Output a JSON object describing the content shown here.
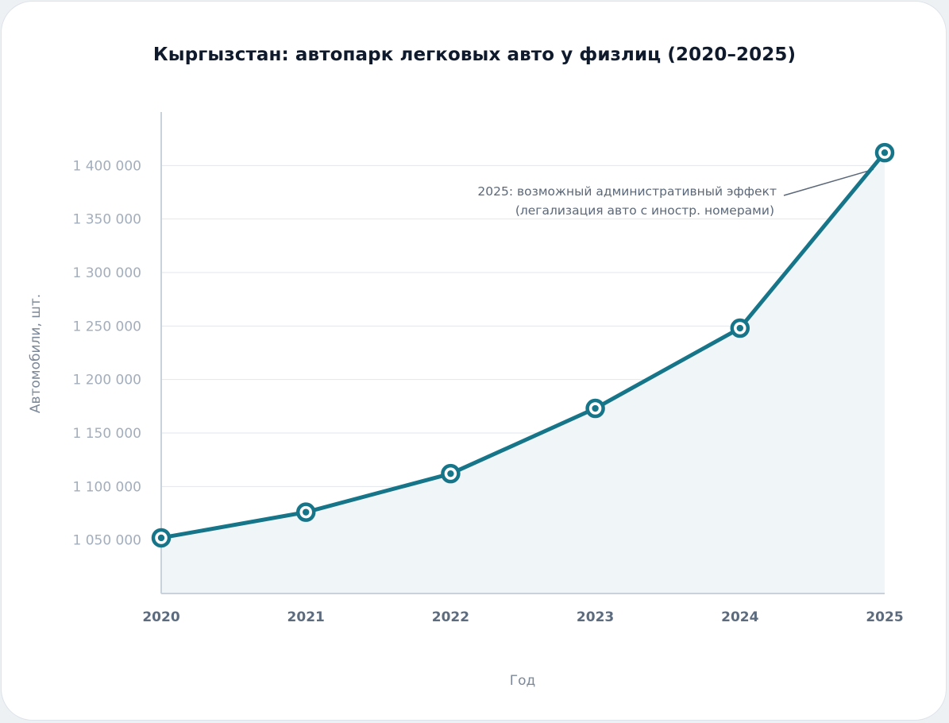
{
  "chart_data": {
    "type": "area",
    "title": "Кыргызстан: автопарк легковых авто у физлиц (2020–2025)",
    "xlabel": "Год",
    "ylabel": "Автомобили, шт.",
    "x": [
      "2020",
      "2021",
      "2022",
      "2023",
      "2024",
      "2025"
    ],
    "series": [
      {
        "values": [
          1052000,
          1076000,
          1112000,
          1173000,
          1248000,
          1412000
        ]
      }
    ],
    "ylim": [
      1000000,
      1450000
    ],
    "yticks": [
      1050000,
      1100000,
      1150000,
      1200000,
      1250000,
      1300000,
      1350000,
      1400000
    ],
    "ytick_labels": [
      "1 050 000",
      "1 100 000",
      "1 150 000",
      "1 200 000",
      "1 250 000",
      "1 300 000",
      "1 350 000",
      "1 400 000"
    ],
    "grid": true,
    "line_color": "#17758a",
    "fill_color": "#f0f5f8",
    "annotation": {
      "x": "2025",
      "lines": [
        "2025: возможный административный эффект",
        "(легализация авто с иностр. номерами)"
      ]
    }
  }
}
